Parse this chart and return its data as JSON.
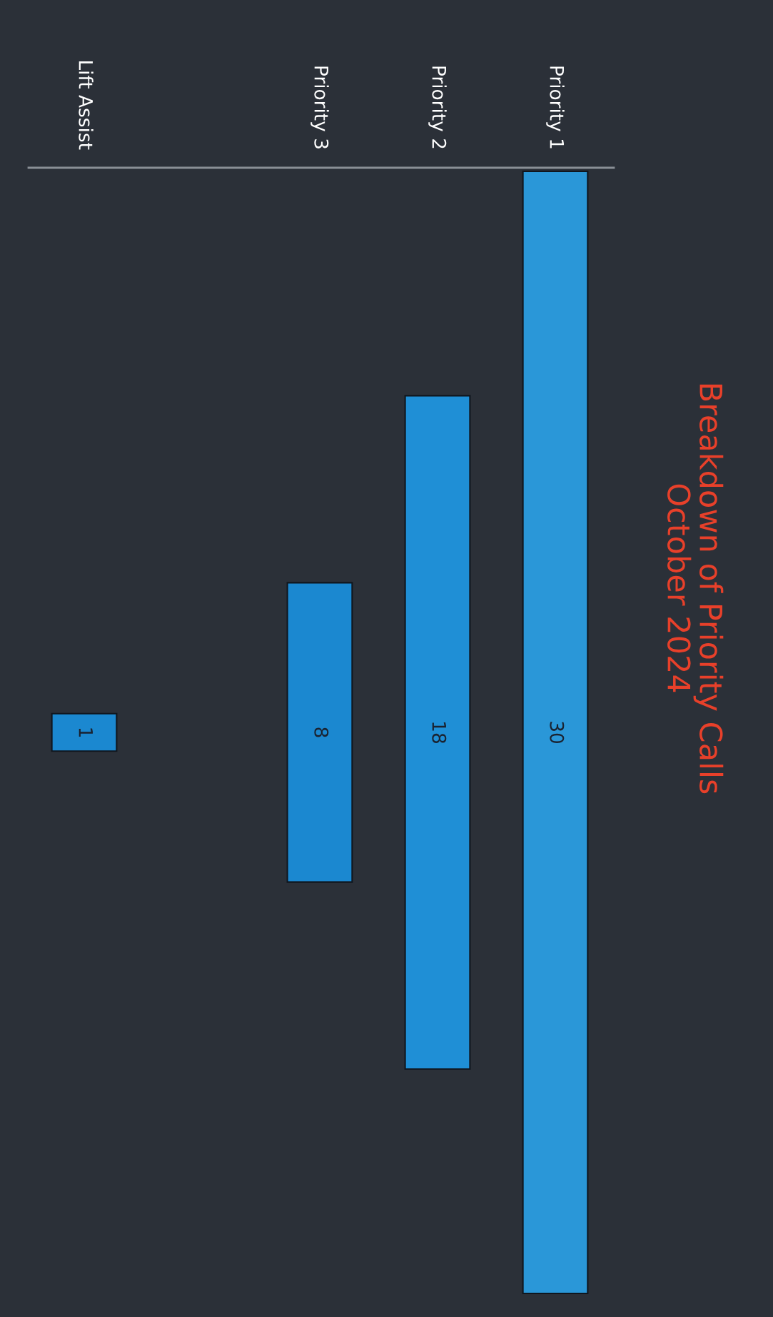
{
  "chart_data": {
    "type": "other",
    "title": "Breakdown of Priority Calls\nOctober 2024",
    "categories": [
      "Priority 1",
      "Priority 2",
      "Priority 3",
      null,
      "Lift Assist"
    ],
    "values": [
      30,
      18,
      8,
      null,
      1
    ],
    "colors": [
      "#2a97d8",
      "#1f8fd6",
      "#1b88d0",
      null,
      "#1b88d0"
    ],
    "data_labels": true
  }
}
